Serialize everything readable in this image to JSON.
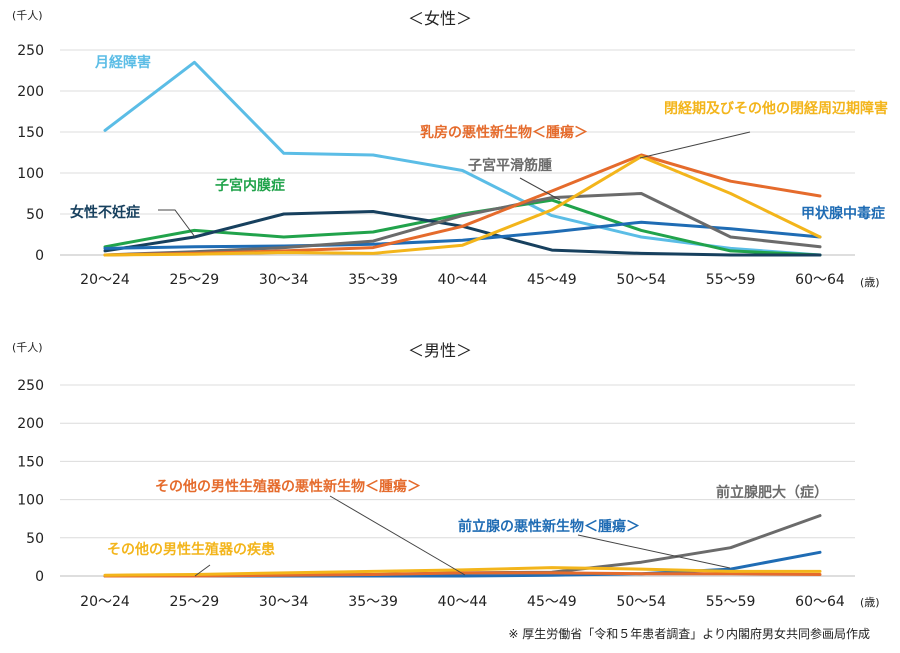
{
  "source_note": "※ 厚生労働省「令和５年患者調査」より内閣府男女共同参画局作成",
  "chart_data": [
    {
      "type": "line",
      "title": "＜女性＞",
      "unit_label": "(千人)",
      "xunit_label": "(歳)",
      "categories": [
        "20～24",
        "25～29",
        "30～34",
        "35～39",
        "40～44",
        "45～49",
        "50～54",
        "55～59",
        "60～64"
      ],
      "ylim": [
        0,
        250
      ],
      "yticks": [
        0,
        50,
        100,
        150,
        200,
        250
      ],
      "grid": true,
      "series": [
        {
          "name": "月経障害",
          "color": "#5bbde6",
          "values": [
            152,
            235,
            124,
            122,
            103,
            48,
            22,
            8,
            0
          ]
        },
        {
          "name": "子宮内膜症",
          "color": "#21a34b",
          "values": [
            10,
            30,
            22,
            28,
            50,
            67,
            30,
            5,
            0
          ]
        },
        {
          "name": "女性不妊症",
          "color": "#17405e",
          "values": [
            5,
            22,
            50,
            53,
            35,
            6,
            2,
            0,
            0
          ]
        },
        {
          "name": "甲状腺中毒症",
          "color": "#1f6cb4",
          "values": [
            8,
            10,
            11,
            13,
            18,
            28,
            40,
            32,
            22
          ]
        },
        {
          "name": "子宮平滑筋腫",
          "color": "#6b6b6b",
          "values": [
            0,
            4,
            9,
            17,
            48,
            70,
            75,
            22,
            10
          ]
        },
        {
          "name": "乳房の悪性新生物＜腫瘍＞",
          "color": "#e56b2c",
          "values": [
            0,
            2,
            5,
            9,
            35,
            78,
            122,
            90,
            72
          ]
        },
        {
          "name": "閉経期及びその他の閉経周辺期障害",
          "color": "#f3b51b",
          "values": [
            0,
            1,
            3,
            2,
            12,
            55,
            120,
            75,
            22
          ]
        }
      ]
    },
    {
      "type": "line",
      "title": "＜男性＞",
      "unit_label": "(千人)",
      "xunit_label": "(歳)",
      "categories": [
        "20～24",
        "25～29",
        "30～34",
        "35～39",
        "40～44",
        "45～49",
        "50～54",
        "55～59",
        "60～64"
      ],
      "ylim": [
        0,
        250
      ],
      "yticks": [
        0,
        50,
        100,
        150,
        200,
        250
      ],
      "grid": true,
      "series": [
        {
          "name": "前立腺肥大（症）",
          "color": "#6b6b6b",
          "values": [
            0,
            0,
            1,
            2,
            4,
            5,
            18,
            37,
            79
          ]
        },
        {
          "name": "前立腺の悪性新生物＜腫瘍＞",
          "color": "#1f6cb4",
          "values": [
            0,
            0,
            0,
            0,
            0,
            1,
            3,
            9,
            31
          ]
        },
        {
          "name": "その他の男性生殖器の悪性新生物＜腫瘍＞",
          "color": "#e56b2c",
          "values": [
            0,
            0,
            1,
            2,
            4,
            4,
            3,
            3,
            2
          ]
        },
        {
          "name": "その他の男性生殖器の疾患",
          "color": "#f3b51b",
          "values": [
            1,
            2,
            4,
            6,
            8,
            11,
            9,
            6,
            6
          ]
        }
      ]
    }
  ]
}
